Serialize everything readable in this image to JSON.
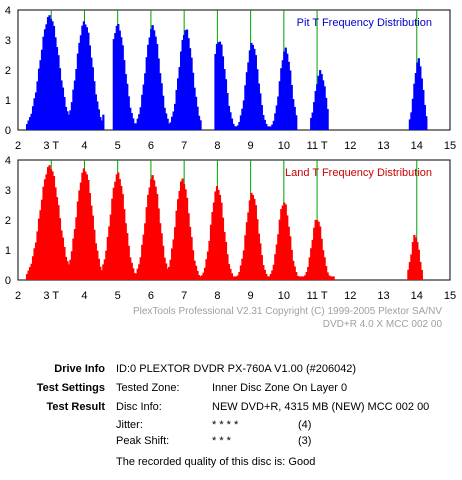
{
  "chart_data": [
    {
      "type": "area",
      "title": "Pit T Frequency Distribution",
      "title_color": "#0000cc",
      "fill_color": "#0000ff",
      "xlim": [
        2,
        15
      ],
      "ylim": [
        0,
        4
      ],
      "x_ticks": [
        "2",
        "3 T",
        "4",
        "5",
        "6",
        "7",
        "8",
        "9",
        "10",
        "11 T",
        "12",
        "13",
        "14",
        "15"
      ],
      "y_ticks": [
        "0",
        "1",
        "2",
        "3",
        "4"
      ],
      "green_lines": [
        3,
        4,
        5,
        6,
        7,
        8,
        9,
        10,
        11,
        14
      ],
      "peaks": [
        {
          "x": 2.95,
          "height": 3.85,
          "width": 0.36
        },
        {
          "x": 4.0,
          "height": 3.65,
          "width": 0.3
        },
        {
          "x": 5.0,
          "height": 3.55,
          "width": 0.28
        },
        {
          "x": 6.05,
          "height": 3.5,
          "width": 0.27
        },
        {
          "x": 7.05,
          "height": 3.4,
          "width": 0.26
        },
        {
          "x": 8.05,
          "height": 3.05,
          "width": 0.24
        },
        {
          "x": 9.05,
          "height": 2.95,
          "width": 0.23
        },
        {
          "x": 10.05,
          "height": 2.75,
          "width": 0.22
        },
        {
          "x": 11.1,
          "height": 2.0,
          "width": 0.2
        },
        {
          "x": 14.05,
          "height": 2.4,
          "width": 0.17
        }
      ],
      "extra_x_ranges": [
        [
          2.25,
          4.6
        ],
        [
          4.85,
          7.5
        ],
        [
          7.9,
          10.4
        ],
        [
          10.8,
          11.35
        ],
        [
          13.75,
          14.3
        ]
      ]
    },
    {
      "type": "area",
      "title": "Land T Frequency Distribution",
      "title_color": "#cc0000",
      "fill_color": "#ff0000",
      "xlim": [
        2,
        15
      ],
      "ylim": [
        0,
        4
      ],
      "x_ticks": [
        "2",
        "3 T",
        "4",
        "5",
        "6",
        "7",
        "8",
        "9",
        "10",
        "11 T",
        "12",
        "13",
        "14",
        "15"
      ],
      "y_ticks": [
        "0",
        "1",
        "2",
        "3",
        "4"
      ],
      "green_lines": [
        3,
        4,
        5,
        6,
        7,
        8,
        9,
        10,
        11,
        14
      ],
      "peaks": [
        {
          "x": 2.95,
          "height": 3.85,
          "width": 0.36
        },
        {
          "x": 4.0,
          "height": 3.75,
          "width": 0.3
        },
        {
          "x": 5.0,
          "height": 3.6,
          "width": 0.28
        },
        {
          "x": 6.05,
          "height": 3.5,
          "width": 0.27
        },
        {
          "x": 6.95,
          "height": 3.4,
          "width": 0.26
        },
        {
          "x": 8.0,
          "height": 3.15,
          "width": 0.24
        },
        {
          "x": 9.05,
          "height": 2.95,
          "width": 0.23
        },
        {
          "x": 10.0,
          "height": 2.65,
          "width": 0.22
        },
        {
          "x": 11.0,
          "height": 2.1,
          "width": 0.2
        },
        {
          "x": 13.95,
          "height": 1.55,
          "width": 0.15
        }
      ],
      "extra_x_ranges": [
        [
          2.25,
          11.5
        ],
        [
          13.7,
          14.15
        ]
      ]
    }
  ],
  "copyright_line1": "PlexTools Professional V2.31 Copyright (C) 1999-2005 Plextor SA/NV",
  "copyright_line2": "DVD+R   4.0 X   MCC 002 00",
  "info": {
    "drive_info_label": "Drive Info",
    "drive_info_value": "ID:0 PLEXTOR DVDR PX-760A V1.00 (#206042)",
    "test_settings_label": "Test Settings",
    "tested_zone_label": "Tested Zone:",
    "tested_zone_value": "Inner Disc Zone On Layer 0",
    "test_result_label": "Test Result",
    "disc_info_label": "Disc Info:",
    "disc_info_value": "NEW DVD+R, 4315 MB (NEW) MCC 002 00",
    "jitter_label": "Jitter:",
    "jitter_stars": "* * * *",
    "jitter_value": "(4)",
    "peak_shift_label": "Peak Shift:",
    "peak_shift_stars": "* * *",
    "peak_shift_value": "(3)",
    "quality_text": "The recorded quality of this disc is: Good"
  }
}
